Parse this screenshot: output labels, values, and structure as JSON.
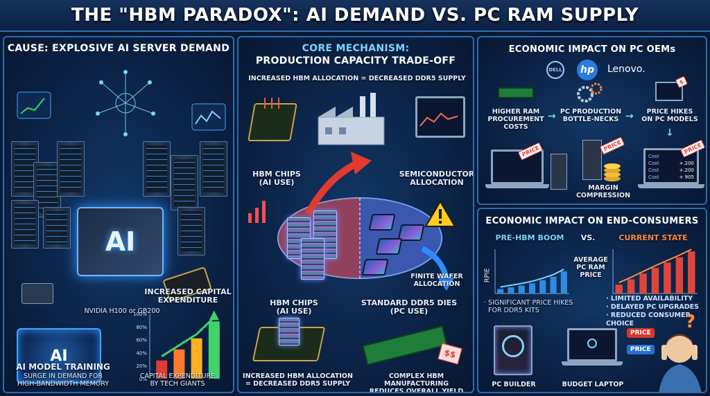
{
  "title": "THE \"HBM PARADOX\": AI DEMAND VS. PC RAM SUPPLY",
  "left": {
    "title": "CAUSE: EXPLOSIVE AI SERVER DEMAND",
    "chip_label": "AI",
    "gpu_caption": "NVIDIA H100 or GB200",
    "capex_title": "INCREASED CAPITAL\nEXPENDITURE",
    "capex_ticks": [
      "100%",
      "80%",
      "60%",
      "40%",
      "20%",
      "0%"
    ],
    "brain_label": "AI",
    "training_title": "AI MODEL TRAINING",
    "training_sub": "SURGE IN DEMAND FOR\nHIGH-BANDWIDTH MEMORY",
    "capex_sub": "CAPITAL EXPENDITURE\nBY TECH GIANTS"
  },
  "mid": {
    "title_line1": "CORE MECHANISM:",
    "title_line2": "PRODUCTION CAPACITY TRADE-OFF",
    "subtitle": "INCREASED HBM ALLOCATION = DECREASED DDR5 SUPPLY",
    "hbm_ai_top": "HBM CHIPS\n(AI USE)",
    "semi_alloc": "SEMICONDUCTOR\nALLOCATION",
    "finite_wafer": "FINITE WAFER\nALLOCATION",
    "hbm_ai_bottom": "HBM CHIPS\n(AI USE)",
    "ddr5_dies": "STANDARD DDR5 DIES\n(PC USE)",
    "bottom_left": "INCREASED HBM ALLOCATION\n= DECREASED DDR5 SUPPLY",
    "bottom_right": "COMPLEX HBM MANUFACTURING\nREDUCES OVERALL YIELD",
    "ram_tag": "$$"
  },
  "right_top": {
    "title": "ECONOMIC IMPACT ON PC OEMs",
    "logos": [
      "DELL",
      "hp",
      "Lenovo."
    ],
    "step1": "HIGHER RAM\nPROCUREMENT\nCOSTS",
    "step2": "PC PRODUCTION\nBOTTLE-NECKS",
    "step3": "PRICE HIKES\nON PC MODELS",
    "margin": "MARGIN\nCOMPRESSION",
    "price_tag": "PRICE",
    "screen_rows": [
      "Cost",
      "Cost",
      "Cost",
      "Cost"
    ],
    "screen_vals": [
      "+.200",
      "+.200",
      "+ 905"
    ]
  },
  "right_bottom": {
    "title": "ECONOMIC IMPACT ON END-CONSUMERS",
    "pre_label": "PRE-HBM BOOM",
    "vs": "VS.",
    "current_label": "CURRENT STATE",
    "axis_label": "RPIE",
    "avg_label": "AVERAGE\nPC RAM\nPRICE",
    "left_note": "· SIGNIFICANT PRICE HIKES\n  FOR DDR5 KITS",
    "right_notes": [
      "· LIMITED AVAILABILITY",
      "· DELAYED PC UPGRADES",
      "· REDUCED CONSUMER CHOICE"
    ],
    "pc_builder": "PC BUILDER",
    "budget_laptop": "BUDGET LAPTOP",
    "price_btn": "PRICE",
    "price_btn2": "PRICE",
    "question": "?"
  },
  "colors": {
    "accent": "#7fd3ff",
    "orange": "#ff8a3d",
    "green": "#3fd36b",
    "red": "#e23b2e"
  },
  "chart_data": [
    {
      "type": "bar",
      "categories": [
        "1",
        "2",
        "3",
        "4"
      ],
      "values": [
        28,
        45,
        62,
        88
      ],
      "ylim": [
        0,
        100
      ]
    },
    {
      "type": "bar",
      "categories": [
        "1",
        "2",
        "3",
        "4",
        "5",
        "6",
        "7"
      ],
      "values": [
        10,
        14,
        18,
        23,
        30,
        38,
        50
      ],
      "ylim": [
        0,
        100
      ]
    },
    {
      "type": "bar",
      "categories": [
        "1",
        "2",
        "3",
        "4",
        "5",
        "6",
        "7"
      ],
      "values": [
        20,
        32,
        45,
        58,
        70,
        82,
        95
      ],
      "ylim": [
        0,
        100
      ]
    }
  ]
}
